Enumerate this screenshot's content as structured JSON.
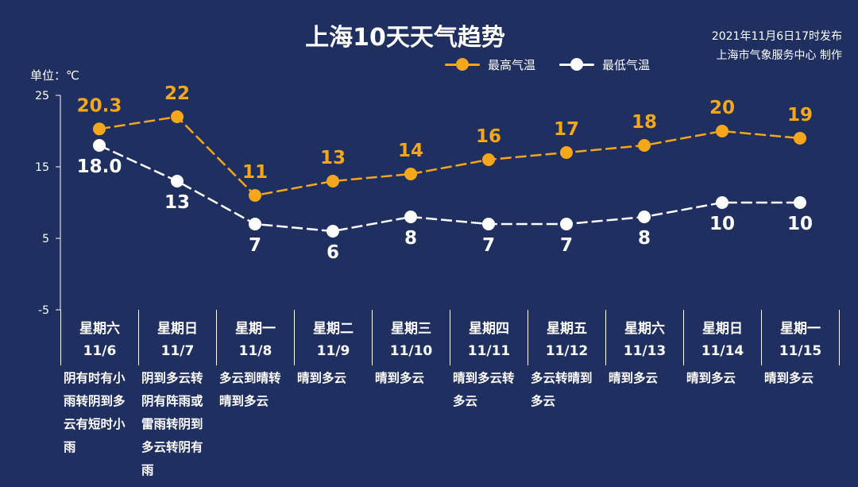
{
  "title": "上海10天天气趋势",
  "publish": {
    "line1": "2021年11月6日17时发布",
    "line2": "上海市气象服务中心 制作"
  },
  "unit_label": "单位：℃",
  "colors": {
    "background": "#1f2f60",
    "high": "#f5a71c",
    "low": "#ffffff"
  },
  "chart_data": {
    "type": "line",
    "title": "上海10天天气趋势",
    "ylim": [
      -5,
      25
    ],
    "yticks": [
      "25",
      "15",
      "5",
      "-5"
    ],
    "yticks_values": [
      25,
      15,
      5,
      -5
    ],
    "categories": [
      "11/6",
      "11/7",
      "11/8",
      "11/9",
      "11/10",
      "11/11",
      "11/12",
      "11/13",
      "11/14",
      "11/15"
    ],
    "series": [
      {
        "name": "最高气温",
        "values": [
          20.3,
          22,
          11,
          13,
          14,
          16,
          17,
          18,
          20,
          19
        ],
        "labels": [
          "20.3",
          "22",
          "11",
          "13",
          "14",
          "16",
          "17",
          "18",
          "20",
          "19"
        ]
      },
      {
        "name": "最低气温",
        "values": [
          18.0,
          13,
          7,
          6,
          8,
          7,
          7,
          8,
          10,
          10
        ],
        "labels": [
          "18.0",
          "13",
          "7",
          "6",
          "8",
          "7",
          "7",
          "8",
          "10",
          "10"
        ]
      }
    ],
    "legend": "top-center"
  },
  "days": [
    {
      "weekday": "星期六",
      "date": "11/6",
      "weather": "阴有时有小雨转阴到多云有短时小雨"
    },
    {
      "weekday": "星期日",
      "date": "11/7",
      "weather": "阴到多云转阴有阵雨或雷雨转阴到多云转阴有雨"
    },
    {
      "weekday": "星期一",
      "date": "11/8",
      "weather": "多云到晴转晴到多云"
    },
    {
      "weekday": "星期二",
      "date": "11/9",
      "weather": "晴到多云"
    },
    {
      "weekday": "星期三",
      "date": "11/10",
      "weather": "晴到多云"
    },
    {
      "weekday": "星期四",
      "date": "11/11",
      "weather": "晴到多云转多云"
    },
    {
      "weekday": "星期五",
      "date": "11/12",
      "weather": "多云转晴到多云"
    },
    {
      "weekday": "星期六",
      "date": "11/13",
      "weather": "晴到多云"
    },
    {
      "weekday": "星期日",
      "date": "11/14",
      "weather": "晴到多云"
    },
    {
      "weekday": "星期一",
      "date": "11/15",
      "weather": "晴到多云"
    }
  ]
}
